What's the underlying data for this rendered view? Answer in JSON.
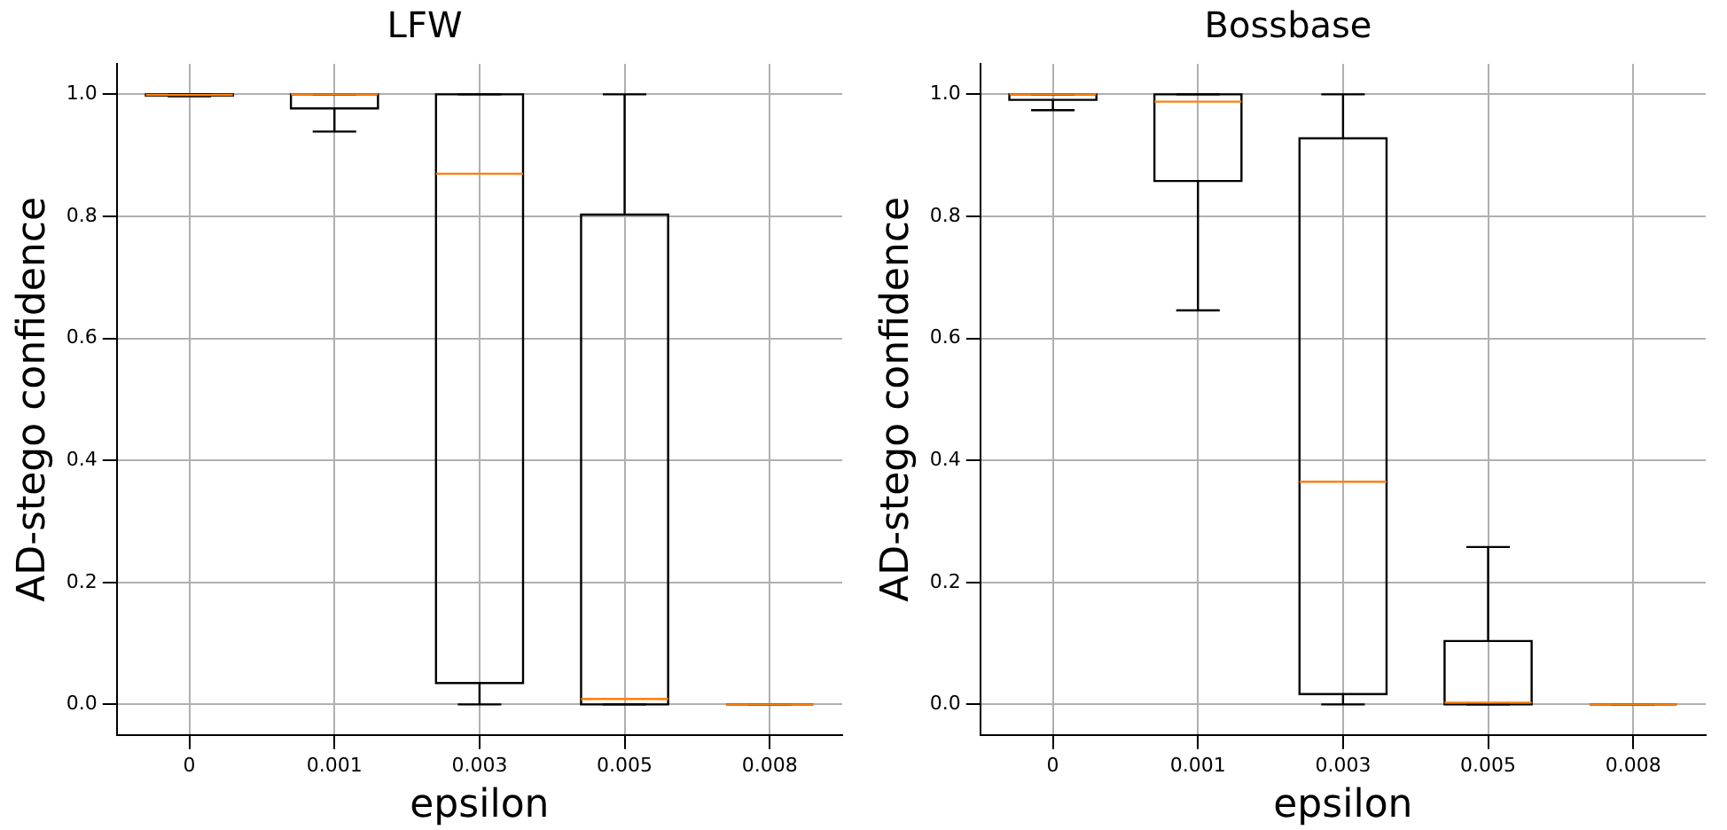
{
  "chart_data": [
    {
      "type": "box",
      "title": "LFW",
      "xlabel": "epsilon",
      "ylabel": "AD-stego confidence",
      "categories": [
        "0",
        "0.001",
        "0.003",
        "0.005",
        "0.008"
      ],
      "boxes": [
        {
          "low": 0.997,
          "q1": 0.998,
          "median": 0.999,
          "q3": 1.0,
          "high": 1.0
        },
        {
          "low": 0.939,
          "q1": 0.977,
          "median": 1.0,
          "q3": 1.0,
          "high": 1.0
        },
        {
          "low": 0.0,
          "q1": 0.035,
          "median": 0.87,
          "q3": 1.0,
          "high": 1.0
        },
        {
          "low": 0.0,
          "q1": 0.0,
          "median": 0.009,
          "q3": 0.803,
          "high": 1.0
        },
        {
          "low": 0.0,
          "q1": 0.0,
          "median": 0.0,
          "q3": 0.0,
          "high": 0.0
        }
      ],
      "ylim": [
        -0.05,
        1.05
      ],
      "yticks": [
        {
          "value": 0,
          "label": "0.0"
        },
        {
          "value": 0.2,
          "label": "0.2"
        },
        {
          "value": 0.4,
          "label": "0.4"
        },
        {
          "value": 0.6,
          "label": "0.6"
        },
        {
          "value": 0.8,
          "label": "0.8"
        },
        {
          "value": 1,
          "label": "1.0"
        }
      ],
      "grid": true
    },
    {
      "type": "box",
      "title": "Bossbase",
      "xlabel": "epsilon",
      "ylabel": "AD-stego confidence",
      "categories": [
        "0",
        "0.001",
        "0.003",
        "0.005",
        "0.008"
      ],
      "boxes": [
        {
          "low": 0.974,
          "q1": 0.991,
          "median": 1.0,
          "q3": 1.0,
          "high": 1.0
        },
        {
          "low": 0.646,
          "q1": 0.858,
          "median": 0.988,
          "q3": 1.0,
          "high": 1.0
        },
        {
          "low": 0.0,
          "q1": 0.017,
          "median": 0.365,
          "q3": 0.928,
          "high": 1.0
        },
        {
          "low": 0.0,
          "q1": 0.0,
          "median": 0.003,
          "q3": 0.104,
          "high": 0.258
        },
        {
          "low": 0.0,
          "q1": 0.0,
          "median": 0.0,
          "q3": 0.0,
          "high": 0.0
        }
      ],
      "ylim": [
        -0.05,
        1.05
      ],
      "yticks": [
        {
          "value": 0,
          "label": "0.0"
        },
        {
          "value": 0.2,
          "label": "0.2"
        },
        {
          "value": 0.4,
          "label": "0.4"
        },
        {
          "value": 0.6,
          "label": "0.6"
        },
        {
          "value": 0.8,
          "label": "0.8"
        },
        {
          "value": 1,
          "label": "1.0"
        }
      ],
      "grid": true
    }
  ]
}
